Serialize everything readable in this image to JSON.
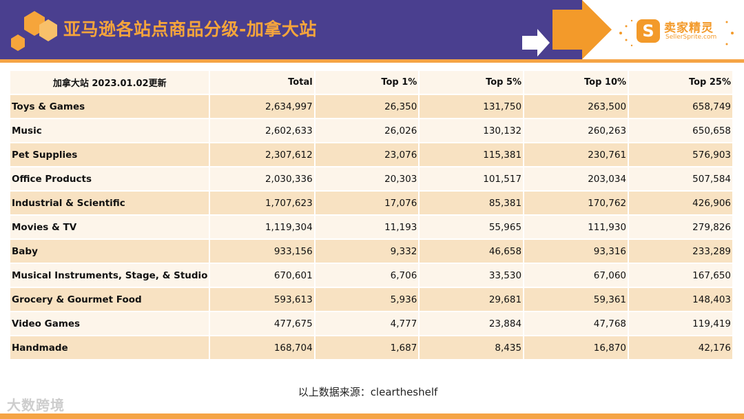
{
  "header": {
    "title": "亚马逊各站点商品分级-加拿大站",
    "logo_cn": "卖家精灵",
    "logo_en": "SellerSprite.com",
    "logo_letter": "S"
  },
  "table": {
    "headers": [
      "加拿大站 2023.01.02更新",
      "Total",
      "Top 1%",
      "Top 5%",
      "Top 10%",
      "Top 25%"
    ],
    "rows": [
      [
        "Toys & Games",
        "2,634,997",
        "26,350",
        "131,750",
        "263,500",
        "658,749"
      ],
      [
        "Music",
        "2,602,633",
        "26,026",
        "130,132",
        "260,263",
        "650,658"
      ],
      [
        "Pet Supplies",
        "2,307,612",
        "23,076",
        "115,381",
        "230,761",
        "576,903"
      ],
      [
        "Office Products",
        "2,030,336",
        "20,303",
        "101,517",
        "203,034",
        "507,584"
      ],
      [
        "Industrial & Scientific",
        "1,707,623",
        "17,076",
        "85,381",
        "170,762",
        "426,906"
      ],
      [
        "Movies & TV",
        "1,119,304",
        "11,193",
        "55,965",
        "111,930",
        "279,826"
      ],
      [
        "Baby",
        "933,156",
        "9,332",
        "46,658",
        "93,316",
        "233,289"
      ],
      [
        "Musical Instruments, Stage, & Studio",
        "670,601",
        "6,706",
        "33,530",
        "67,060",
        "167,650"
      ],
      [
        "Grocery & Gourmet Food",
        "593,613",
        "5,936",
        "29,681",
        "59,361",
        "148,403"
      ],
      [
        "Video Games",
        "477,675",
        "4,777",
        "23,884",
        "47,768",
        "119,419"
      ],
      [
        "Handmade",
        "168,704",
        "1,687",
        "8,435",
        "16,870",
        "42,176"
      ]
    ]
  },
  "source": "以上数据来源：cleartheshelf",
  "watermark": "大数跨境",
  "colors": {
    "header_band": "#4a3f8f",
    "accent_orange": "#f5a445",
    "row_dark": "#f8e2c2",
    "row_light": "#fdf5ea"
  }
}
